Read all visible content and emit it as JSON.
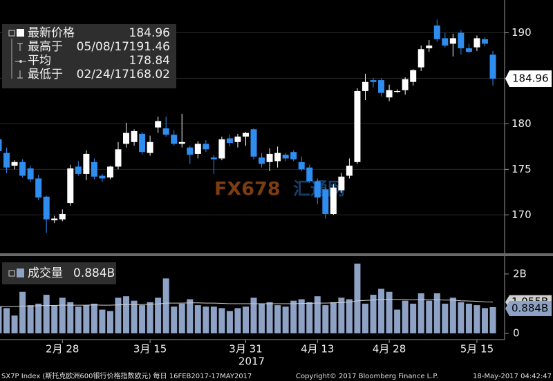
{
  "chart_data": [
    {
      "type": "candlestick",
      "open": [
        178.3,
        176.8,
        175.4,
        175.8,
        175.1,
        174.0,
        172.0,
        169.4,
        169.5,
        171.3,
        175.3,
        174.5,
        175.8,
        174.3,
        174.1,
        175.3,
        177.8,
        178.0,
        178.9,
        176.8,
        179.6,
        179.5,
        178.8,
        177.8,
        177.4,
        176.7,
        177.8,
        176.3,
        176.2,
        178.4,
        178.0,
        178.6,
        179.4,
        176.3,
        175.8,
        175.9,
        176.6,
        176.9,
        175.8,
        175.2,
        173.7,
        172.8,
        170.1,
        172.7,
        174.3,
        175.8,
        183.6,
        184.8,
        184.8,
        182.9,
        183.5,
        183.7,
        184.6,
        186.2,
        188.3,
        190.8,
        189.4,
        188.8,
        190.0,
        188.3,
        188.4,
        189.3,
        187.6
      ],
      "high": [
        178.8,
        177.4,
        176.0,
        176.1,
        175.4,
        174.4,
        172.1,
        169.9,
        170.6,
        175.5,
        175.9,
        177.1,
        176.2,
        174.5,
        175.4,
        178.0,
        180.1,
        179.4,
        179.1,
        178.7,
        180.8,
        180.8,
        179.3,
        181.1,
        177.6,
        178.1,
        178.2,
        176.6,
        178.6,
        178.8,
        178.9,
        179.1,
        179.5,
        176.8,
        177.3,
        177.5,
        176.8,
        177.1,
        176.4,
        175.5,
        174.0,
        173.0,
        173.4,
        174.6,
        176.2,
        183.9,
        185.5,
        185.0,
        185.0,
        184.3,
        183.8,
        185.1,
        186.0,
        188.6,
        189.2,
        191.46,
        190.0,
        189.9,
        190.3,
        188.8,
        189.7,
        189.5,
        188.0
      ],
      "low": [
        176.9,
        174.6,
        175.0,
        174.1,
        173.6,
        171.6,
        168.02,
        169.1,
        169.3,
        171.0,
        174.3,
        173.8,
        173.9,
        173.6,
        173.9,
        175.0,
        177.4,
        177.6,
        176.6,
        176.5,
        179.0,
        178.6,
        177.6,
        177.4,
        175.6,
        176.2,
        176.9,
        174.5,
        176.0,
        177.5,
        177.4,
        177.6,
        176.1,
        175.2,
        174.8,
        175.2,
        175.9,
        175.9,
        174.8,
        173.5,
        171.2,
        169.6,
        170.0,
        172.4,
        174.0,
        175.6,
        182.6,
        184.0,
        183.0,
        182.5,
        183.4,
        183.2,
        184.2,
        185.8,
        187.9,
        189.0,
        188.4,
        187.4,
        187.6,
        187.8,
        188.0,
        188.5,
        184.2
      ],
      "close": [
        177.0,
        175.2,
        175.8,
        174.3,
        173.9,
        171.9,
        169.5,
        169.6,
        170.1,
        175.1,
        174.5,
        176.7,
        174.2,
        174.0,
        175.3,
        177.2,
        179.0,
        179.2,
        176.9,
        178.0,
        180.3,
        178.8,
        177.8,
        178.0,
        176.6,
        177.8,
        177.2,
        176.1,
        178.3,
        177.9,
        178.6,
        179.0,
        176.4,
        175.6,
        176.7,
        176.8,
        176.2,
        176.1,
        175.0,
        173.7,
        171.9,
        170.1,
        173.0,
        174.2,
        175.4,
        183.6,
        184.6,
        184.6,
        183.4,
        183.7,
        183.6,
        184.9,
        185.9,
        188.2,
        188.6,
        189.3,
        188.6,
        189.4,
        188.3,
        187.9,
        189.4,
        188.8,
        184.96
      ],
      "up_color": "#ffffff",
      "down_color": "#2f8df0",
      "ylim": [
        165.7,
        193.6
      ],
      "yticks": [
        170,
        175,
        180,
        185,
        190
      ],
      "grid": true,
      "legend": [
        {
          "label": "最新价格",
          "value": 184.96
        },
        {
          "label": "最高于",
          "date": "05/08/17",
          "value": 191.46
        },
        {
          "label": "平均",
          "value": 178.84
        },
        {
          "label": "最低于",
          "date": "02/24/17",
          "value": 168.02
        }
      ],
      "watermark": [
        "FX678",
        "汇通网"
      ]
    },
    {
      "type": "bar",
      "categories": [
        null,
        null,
        null,
        null,
        null,
        null,
        null,
        null,
        "2月 28",
        null,
        null,
        null,
        null,
        null,
        null,
        null,
        null,
        null,
        null,
        "3月 15",
        null,
        null,
        null,
        null,
        null,
        null,
        null,
        null,
        null,
        null,
        null,
        "3月 31",
        null,
        null,
        null,
        null,
        null,
        null,
        null,
        null,
        "4月 13",
        null,
        null,
        null,
        null,
        null,
        null,
        null,
        null,
        "4月 28",
        null,
        null,
        null,
        null,
        null,
        null,
        null,
        null,
        null,
        null,
        "5月 15",
        null,
        null
      ],
      "year": "2017",
      "series": [
        {
          "name": "成交量",
          "color": "#8ea2c6",
          "last_label": "0.884B",
          "values": [
            0.9,
            0.85,
            0.6,
            1.4,
            0.95,
            1.0,
            1.3,
            0.95,
            1.2,
            1.05,
            0.9,
            0.95,
            1.0,
            0.8,
            0.75,
            1.2,
            1.25,
            1.1,
            0.95,
            1.05,
            1.2,
            1.85,
            0.9,
            1.0,
            1.15,
            0.95,
            0.9,
            0.9,
            0.85,
            0.75,
            0.85,
            0.9,
            1.2,
            1.0,
            1.05,
            0.95,
            0.9,
            1.1,
            1.15,
            1.05,
            1.25,
            0.95,
            1.05,
            1.2,
            1.15,
            2.35,
            1.0,
            1.3,
            1.5,
            1.4,
            0.8,
            1.1,
            1.0,
            1.35,
            1.1,
            1.35,
            1.0,
            1.2,
            1.05,
            1.0,
            0.95,
            0.85,
            0.884
          ]
        },
        {
          "type": "line",
          "color": "#d0d0d0",
          "last_label": "1.055B",
          "values": [
            0.9,
            0.9,
            0.9,
            0.92,
            0.92,
            0.93,
            0.94,
            0.94,
            0.95,
            0.95,
            0.95,
            0.95,
            0.96,
            0.95,
            0.95,
            0.96,
            0.97,
            0.97,
            0.97,
            0.98,
            0.99,
            1.02,
            1.02,
            1.02,
            1.03,
            1.03,
            1.02,
            1.02,
            1.01,
            1.0,
            1.0,
            1.0,
            1.0,
            1.0,
            1.0,
            1.0,
            1.0,
            1.0,
            1.01,
            1.01,
            1.02,
            1.02,
            1.03,
            1.04,
            1.05,
            1.1,
            1.11,
            1.12,
            1.14,
            1.15,
            1.14,
            1.14,
            1.13,
            1.14,
            1.13,
            1.13,
            1.12,
            1.12,
            1.1,
            1.09,
            1.08,
            1.06,
            1.055
          ]
        }
      ],
      "ylim": [
        -0.21,
        2.58
      ],
      "yticks": [
        0,
        {
          "value": 2,
          "label": "2B"
        }
      ]
    }
  ],
  "footer": {
    "left": "SX7P Index (斯托克欧洲600银行价格指数欧元)  每日 16FEB2017-17MAY2017",
    "middle": "Copyright© 2017 Bloomberg Finance L.P.",
    "right": "18-May-2017 04:42:47"
  }
}
